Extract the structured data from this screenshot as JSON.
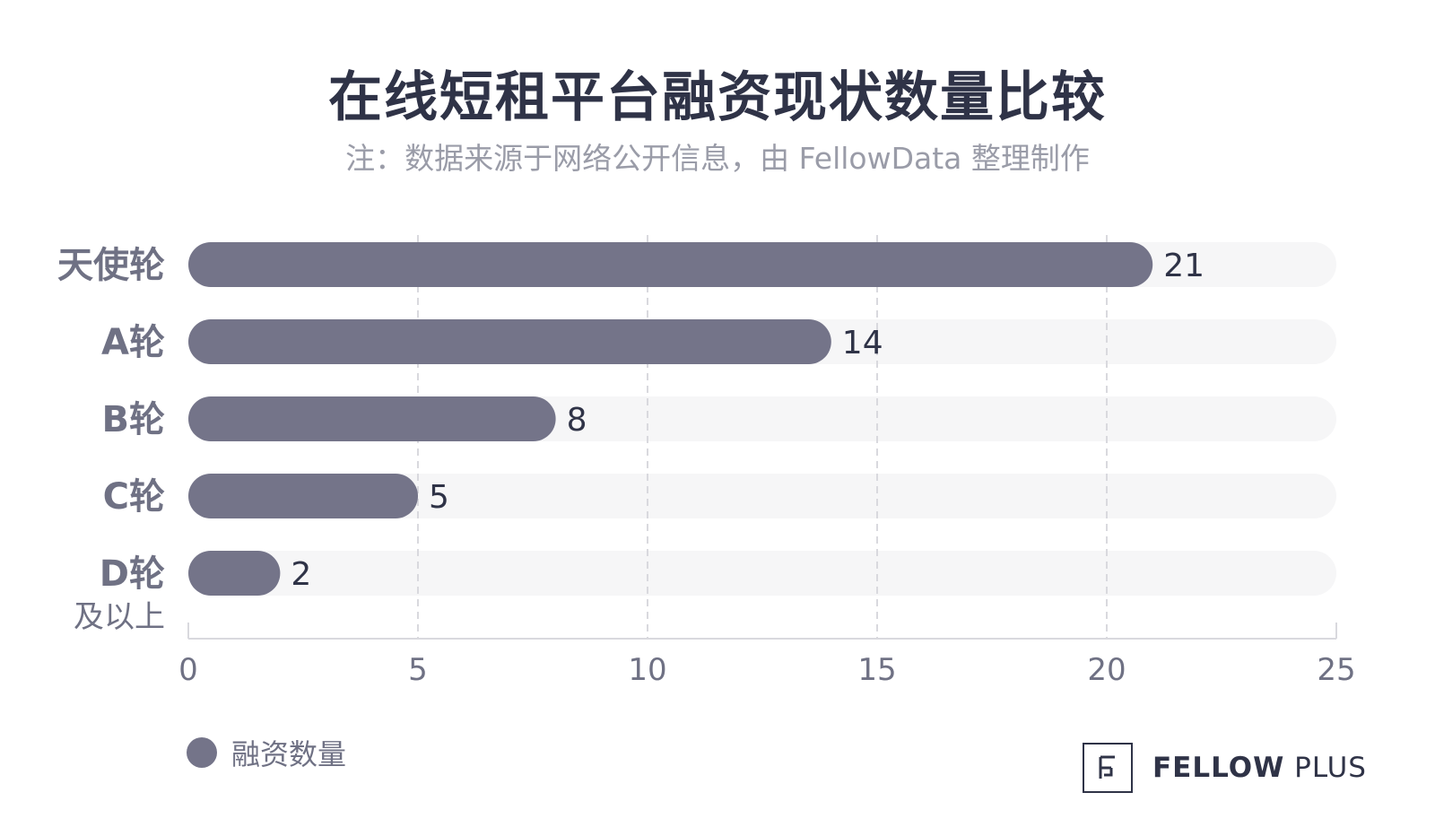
{
  "header": {
    "title": "在线短租平台融资现状数量比较",
    "subtitle": "注：数据来源于网络公开信息，由 FellowData 整理制作"
  },
  "legend": {
    "label": "融资数量"
  },
  "logo": {
    "brand_bold": "FELLOW",
    "brand_light": "PLUS"
  },
  "colors": {
    "bar": "#747489",
    "track": "#f6f6f7",
    "grid": "#d9d9de",
    "text": "#2f3347",
    "axis_text": "#6f7184"
  },
  "chart_data": {
    "type": "bar",
    "orientation": "horizontal",
    "categories": [
      "天使轮",
      "A轮",
      "B轮",
      "C轮",
      "D轮"
    ],
    "category_sublabels": [
      "",
      "",
      "",
      "",
      "及以上"
    ],
    "series": [
      {
        "name": "融资数量",
        "values": [
          21,
          14,
          8,
          5,
          2
        ]
      }
    ],
    "title": "在线短租平台融资现状数量比较",
    "xlim": [
      0,
      25
    ],
    "xticks": [
      0,
      5,
      10,
      15,
      20,
      25
    ],
    "grid": "vertical-dashed",
    "legend_position": "bottom-left",
    "data_labels": true
  }
}
